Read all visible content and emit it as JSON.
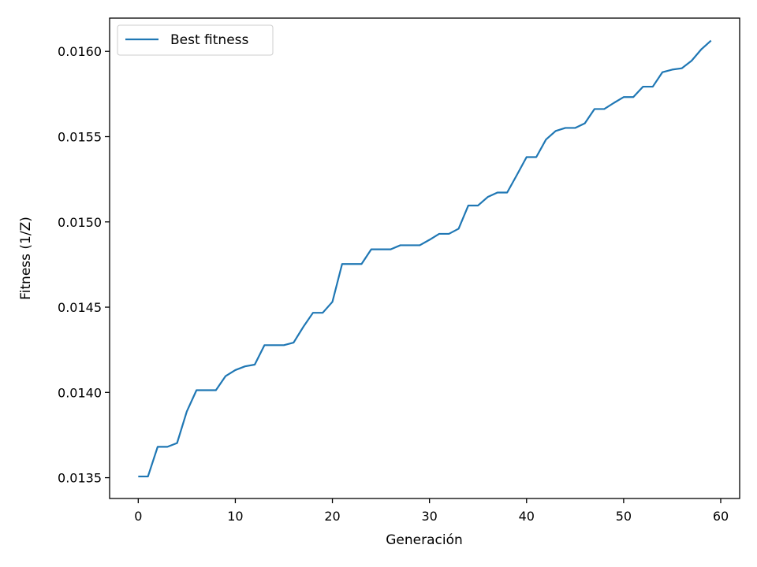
{
  "chart_data": {
    "type": "line",
    "xlabel": "Generación",
    "ylabel": "Fitness (1/Z)",
    "xlim": [
      -2.95,
      61.95
    ],
    "ylim": [
      0.013378,
      0.016195
    ],
    "x_ticks": [
      0,
      10,
      20,
      30,
      40,
      50,
      60
    ],
    "y_ticks": [
      0.0135,
      0.014,
      0.0145,
      0.015,
      0.0155,
      0.016
    ],
    "x_tick_labels": [
      "0",
      "10",
      "20",
      "30",
      "40",
      "50",
      "60"
    ],
    "y_tick_labels": [
      "0.0135",
      "0.0140",
      "0.0145",
      "0.0150",
      "0.0155",
      "0.0160"
    ],
    "grid": false,
    "legend_position": "top-left",
    "colors": {
      "series": "#1f77b4",
      "frame": "#000000",
      "background": "#ffffff"
    },
    "series": [
      {
        "name": "Best fitness",
        "x": [
          0,
          1,
          2,
          3,
          4,
          5,
          6,
          7,
          8,
          9,
          10,
          11,
          12,
          13,
          14,
          15,
          16,
          17,
          18,
          19,
          20,
          21,
          22,
          23,
          24,
          25,
          26,
          27,
          28,
          29,
          30,
          31,
          32,
          33,
          34,
          35,
          36,
          37,
          38,
          39,
          40,
          41,
          42,
          43,
          44,
          45,
          46,
          47,
          48,
          49,
          50,
          51,
          52,
          53,
          54,
          55,
          56,
          57,
          58,
          59
        ],
        "values": [
          0.013507,
          0.013507,
          0.013681,
          0.013681,
          0.013703,
          0.013888,
          0.014013,
          0.014013,
          0.014013,
          0.014096,
          0.014131,
          0.014153,
          0.014163,
          0.014277,
          0.014277,
          0.014277,
          0.014292,
          0.014384,
          0.014467,
          0.014467,
          0.014531,
          0.014753,
          0.014753,
          0.014753,
          0.014839,
          0.014839,
          0.014839,
          0.014863,
          0.014863,
          0.014863,
          0.014895,
          0.01493,
          0.01493,
          0.01496,
          0.015096,
          0.015096,
          0.015146,
          0.015172,
          0.015172,
          0.015275,
          0.01538,
          0.01538,
          0.015483,
          0.015533,
          0.015551,
          0.015551,
          0.015578,
          0.015662,
          0.015662,
          0.015698,
          0.015732,
          0.015732,
          0.015793,
          0.015793,
          0.015878,
          0.015893,
          0.015901,
          0.015945,
          0.016012,
          0.016063
        ]
      }
    ]
  }
}
